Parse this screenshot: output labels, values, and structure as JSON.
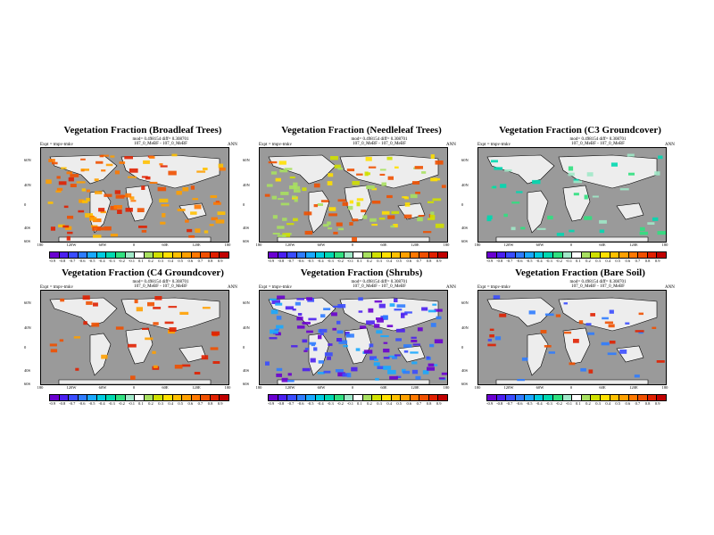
{
  "chart_data": [
    {
      "type": "heatmap",
      "title": "Vegetation Fraction (Broadleaf Trees)",
      "meta1": "mod= 0.498154 diff= 0.308701",
      "meta2": "107_0_MeBF - 107_0_MeBF",
      "expt": "Expt = tmpv-tmkv",
      "season": "ANN",
      "xticks": [
        "180",
        "120W",
        "60W",
        "0",
        "60E",
        "120E",
        "180"
      ],
      "yticks": [
        "60N",
        "40N",
        "0",
        "40S",
        "60S"
      ],
      "colorbar": [
        "-0.9",
        "-0.8",
        "-0.7",
        "-0.6",
        "-0.5",
        "-0.4",
        "-0.3",
        "-0.2",
        "-0.1",
        "0.1",
        "0.2",
        "0.3",
        "0.4",
        "0.5",
        "0.6",
        "0.7",
        "0.8",
        "0.9"
      ]
    },
    {
      "type": "heatmap",
      "title": "Vegetation Fraction (Needleleaf Trees)",
      "meta1": "mod= 0.498154 diff= 0.308701",
      "meta2": "107_0_MeBF - 107_0_MeBF",
      "expt": "Expt = tmpv-tmkv",
      "season": "ANN",
      "xticks": [
        "180",
        "120W",
        "60W",
        "0",
        "60E",
        "120E",
        "180"
      ],
      "yticks": [
        "60N",
        "40N",
        "0",
        "40S",
        "60S"
      ],
      "colorbar": [
        "-0.9",
        "-0.8",
        "-0.7",
        "-0.6",
        "-0.5",
        "-0.4",
        "-0.3",
        "-0.2",
        "-0.1",
        "0.1",
        "0.2",
        "0.3",
        "0.4",
        "0.5",
        "0.6",
        "0.7",
        "0.8",
        "0.9"
      ]
    },
    {
      "type": "heatmap",
      "title": "Vegetation Fraction (C3 Groundcover)",
      "meta1": "mod= 0.498154 diff= 0.308701",
      "meta2": "107_0_MeBF - 107_0_MeBF",
      "expt": "Expt = tmpv-tmkv",
      "season": "ANN",
      "xticks": [
        "180",
        "120W",
        "60W",
        "0",
        "60E",
        "120E",
        "180"
      ],
      "yticks": [
        "60N",
        "40N",
        "0",
        "40S",
        "60S"
      ],
      "colorbar": [
        "-0.9",
        "-0.8",
        "-0.7",
        "-0.6",
        "-0.5",
        "-0.4",
        "-0.3",
        "-0.2",
        "-0.1",
        "0.1",
        "0.2",
        "0.3",
        "0.4",
        "0.5",
        "0.6",
        "0.7",
        "0.8",
        "0.9"
      ]
    },
    {
      "type": "heatmap",
      "title": "Vegetation Fraction (C4 Groundcover)",
      "meta1": "mod= 0.498154 diff= 0.308701",
      "meta2": "107_0_MeBF - 107_0_MeBF",
      "expt": "Expt = tmpv-tmkv",
      "season": "ANN",
      "xticks": [
        "180",
        "120W",
        "60W",
        "0",
        "60E",
        "120E",
        "180"
      ],
      "yticks": [
        "60N",
        "40N",
        "0",
        "40S",
        "60S"
      ],
      "colorbar": [
        "-0.9",
        "-0.8",
        "-0.7",
        "-0.6",
        "-0.5",
        "-0.4",
        "-0.3",
        "-0.2",
        "-0.1",
        "0.1",
        "0.2",
        "0.3",
        "0.4",
        "0.5",
        "0.6",
        "0.7",
        "0.8",
        "0.9"
      ]
    },
    {
      "type": "heatmap",
      "title": "Vegetation Fraction (Shrubs)",
      "meta1": "mod= 0.498154 diff= 0.308701",
      "meta2": "107_0_MeBF - 107_0_MeBF",
      "expt": "Expt = tmpv-tmkv",
      "season": "ANN",
      "xticks": [
        "180",
        "120W",
        "60W",
        "0",
        "60E",
        "120E",
        "180"
      ],
      "yticks": [
        "60N",
        "40N",
        "0",
        "40S",
        "60S"
      ],
      "colorbar": [
        "-0.9",
        "-0.8",
        "-0.7",
        "-0.6",
        "-0.5",
        "-0.4",
        "-0.3",
        "-0.2",
        "-0.1",
        "0.1",
        "0.2",
        "0.3",
        "0.4",
        "0.5",
        "0.6",
        "0.7",
        "0.8",
        "0.9"
      ]
    },
    {
      "type": "heatmap",
      "title": "Vegetation Fraction (Bare Soil)",
      "meta1": "mod= 0.498154 diff= 0.308701",
      "meta2": "107_0_MeBF - 107_0_MeBF",
      "expt": "Expt = tmpv-tmkv",
      "season": "ANN",
      "xticks": [
        "180",
        "120W",
        "60W",
        "0",
        "60E",
        "120E",
        "180"
      ],
      "yticks": [
        "60N",
        "40N",
        "0",
        "40S",
        "60S"
      ],
      "colorbar": [
        "-0.9",
        "-0.8",
        "-0.7",
        "-0.6",
        "-0.5",
        "-0.4",
        "-0.3",
        "-0.2",
        "-0.1",
        "0.1",
        "0.2",
        "0.3",
        "0.4",
        "0.5",
        "0.6",
        "0.7",
        "0.8",
        "0.9"
      ]
    }
  ],
  "colors": {
    "ocean": "#9a9a9a",
    "land": "#ededed",
    "scale": [
      "#6a00d0",
      "#4a1ff0",
      "#3a4cff",
      "#2f7cff",
      "#1aa8ff",
      "#00cce0",
      "#00d8b0",
      "#30e080",
      "#a0e8c8",
      "#ffffff",
      "#a8e060",
      "#d0e000",
      "#ffe000",
      "#ffc000",
      "#ffa000",
      "#ff7800",
      "#f05000",
      "#e02000",
      "#c00000"
    ]
  }
}
